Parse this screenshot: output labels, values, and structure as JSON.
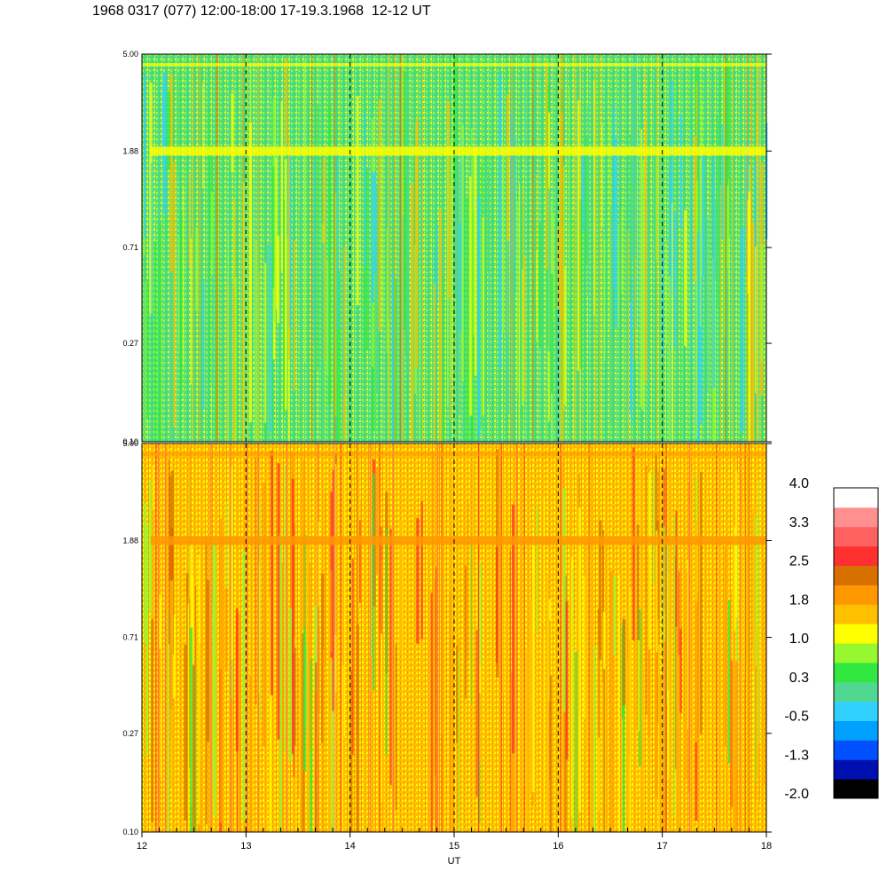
{
  "title": "1968 0317 (077) 12:00-18:00 17-19.3.1968  12-12 UT",
  "chart_data": {
    "type": "heatmap",
    "title": "1968 0317 (077) 12:00-18:00 17-19.3.1968  12-12 UT",
    "xlabel": "UT",
    "xlim": [
      12,
      18
    ],
    "x_ticks": [
      "12",
      "13",
      "14",
      "15",
      "16",
      "17",
      "18"
    ],
    "vertical_dashed_lines": [
      13,
      14,
      15,
      16,
      17
    ],
    "panels": [
      {
        "name": "top",
        "ylim": [
          0.1,
          5.0
        ],
        "y_scale": "log",
        "y_ticks": [
          "5.00",
          "1.88",
          "0.71",
          "0.27",
          "0.10"
        ],
        "dominant_level": 0.6,
        "band_frequency": 1.88,
        "band_level": 1.2
      },
      {
        "name": "bottom",
        "ylim": [
          0.1,
          5.0
        ],
        "y_scale": "log",
        "y_ticks": [
          "5.00",
          "1.88",
          "0.71",
          "0.27",
          "0.10"
        ],
        "dominant_level": 1.6,
        "band_frequency": 1.88,
        "band_level": 2.1
      }
    ],
    "colorbar": {
      "tick_labels": [
        "4.0",
        "3.3",
        "2.5",
        "1.8",
        "1.0",
        "0.3",
        "-0.5",
        "-1.3",
        "-2.0"
      ],
      "range": [
        -2.0,
        4.0
      ],
      "colors": [
        "#000000",
        "#0010b0",
        "#0050ff",
        "#00a0ff",
        "#30d0ff",
        "#50d890",
        "#30e840",
        "#98f830",
        "#ffff00",
        "#ffc000",
        "#ff9800",
        "#d87000",
        "#ff3030",
        "#ff6060",
        "#ff9090",
        "#ffffff"
      ]
    }
  }
}
